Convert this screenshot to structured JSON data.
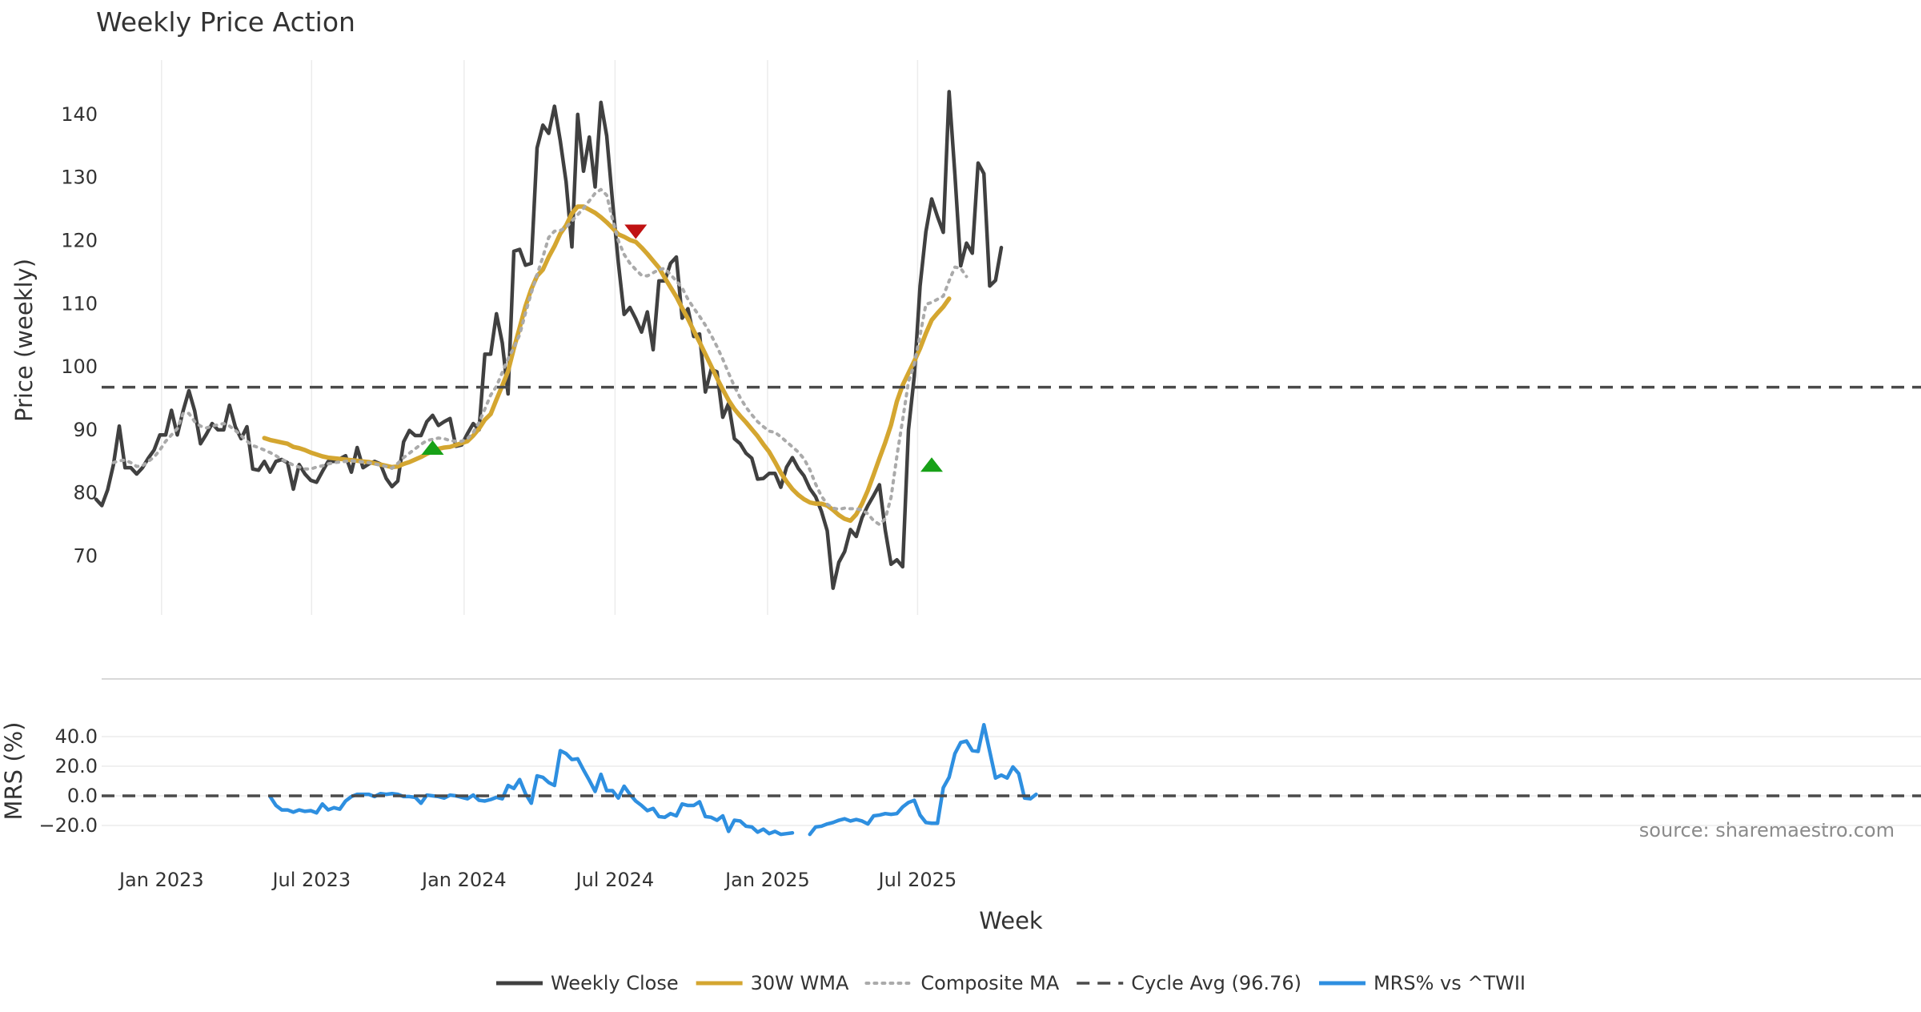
{
  "chart_data": [
    {
      "type": "line",
      "title": "Weekly Price Action",
      "ylabel": "Price (weekly)",
      "ylim": [
        60,
        148
      ],
      "yticks": [
        70,
        80,
        90,
        100,
        110,
        120,
        130,
        140
      ],
      "grid": "vertical",
      "x_start": "2022-10-14",
      "x_step_days": 7,
      "series": [
        {
          "name": "Weekly Close",
          "color": "#404040",
          "style": "solid",
          "values": [
            79,
            78,
            80.5,
            84.5,
            90.6,
            84,
            84,
            83,
            84,
            85.5,
            86.8,
            89.2,
            89.2,
            93.1,
            89.2,
            93,
            96.2,
            93,
            87.8,
            89.3,
            91,
            90,
            90,
            93.9,
            90.5,
            88.6,
            90.5,
            83.8,
            83.6,
            85,
            83.3,
            85,
            85.3,
            84.8,
            80.6,
            84.5,
            83,
            82,
            81.7,
            83.4,
            85,
            85,
            85.4,
            85.9,
            83.3,
            87.2,
            84,
            84.6,
            85,
            84.6,
            82.3,
            81,
            81.9,
            88.1,
            89.9,
            89.1,
            89.1,
            91.3,
            92.3,
            90.7,
            91.3,
            91.8,
            87.4,
            87.6,
            89.4,
            91,
            90,
            102,
            102,
            108.4,
            103.8,
            95.7,
            118.3,
            118.6,
            116.1,
            116.4,
            134.7,
            138.3,
            137,
            141.3,
            135.8,
            129.3,
            119,
            140,
            131,
            136.4,
            128.5,
            141.9,
            136.6,
            126.2,
            116.5,
            108.3,
            109.4,
            107.6,
            105.5,
            108.7,
            102.7,
            113.6,
            113.6,
            116.4,
            117.4,
            107.7,
            109.2,
            104.8,
            105.2,
            96,
            99.6,
            99.2,
            92,
            94.2,
            88.6,
            87.8,
            86.3,
            85.5,
            82.2,
            82.3,
            83.1,
            83.1,
            80.9,
            84.1,
            85.6,
            83.9,
            82.7,
            80.7,
            79.4,
            77.1,
            74,
            64.9,
            69,
            70.7,
            74.2,
            73.1,
            76.1,
            78,
            79.6,
            81.3,
            74.1,
            68.7,
            69.4,
            68.3,
            90,
            98.5,
            112.8,
            121.4,
            126.6,
            123.8,
            121.3,
            143.6,
            130.5,
            116,
            119.6,
            118,
            132.3,
            130.6,
            112.8,
            113.7,
            118.9
          ]
        },
        {
          "name": "30W WMA",
          "color": "#d4a630",
          "style": "solid",
          "start_index": 29,
          "values": [
            88.7,
            88.4,
            88.2,
            88,
            87.8,
            87.3,
            87.1,
            86.8,
            86.4,
            86.1,
            85.8,
            85.6,
            85.5,
            85.4,
            85.3,
            85.2,
            85.1,
            85,
            84.9,
            84.7,
            84.5,
            84.3,
            84.1,
            84.2,
            84.6,
            84.9,
            85.3,
            85.7,
            86.2,
            86.6,
            87,
            87.2,
            87.3,
            87.6,
            87.9,
            88.2,
            89.1,
            90.2,
            91.6,
            92.5,
            94.8,
            97,
            99.3,
            102.9,
            106.2,
            109.6,
            112.3,
            114.4,
            115.4,
            117.4,
            119.1,
            121.1,
            122.4,
            124.3,
            125.4,
            125.4,
            124.9,
            124.4,
            123.7,
            122.9,
            122,
            121,
            120.6,
            120.1,
            119.8,
            118.9,
            117.9,
            116.8,
            115.7,
            114.1,
            112.6,
            111.1,
            109.3,
            107.6,
            105.7,
            103.9,
            102,
            100.1,
            98.2,
            96.4,
            94.7,
            93.3,
            92.2,
            91.2,
            90.1,
            89,
            87.7,
            86.5,
            84.9,
            83.2,
            81.8,
            80.6,
            79.7,
            79,
            78.5,
            78.3,
            78.3,
            78,
            77.3,
            76.5,
            75.9,
            75.6,
            76.6,
            78.3,
            80.4,
            82.9,
            85.5,
            88,
            90.8,
            94.5,
            97.1,
            99,
            100.9,
            102.9,
            105.3,
            107.4,
            108.5,
            109.5,
            110.8
          ]
        },
        {
          "name": "Composite MA",
          "color": "#aaaaaa",
          "style": "dotted",
          "start_index": 3,
          "values": [
            84.8,
            85.1,
            85.2,
            84.8,
            84.2,
            84.3,
            85,
            85.7,
            86.8,
            88.2,
            89.2,
            90.2,
            92.6,
            92.6,
            91.3,
            90.6,
            90.3,
            90.6,
            90.8,
            91,
            90.6,
            89.9,
            89.1,
            88.2,
            87.5,
            87.2,
            86.8,
            86.4,
            85.9,
            85.3,
            84.9,
            84.4,
            84.1,
            83.8,
            83.8,
            84.1,
            84.3,
            84.6,
            84.8,
            84.9,
            85,
            85.1,
            85,
            84.9,
            84.8,
            84.6,
            84.4,
            84.2,
            83.9,
            84.7,
            85.6,
            86.3,
            87,
            87.7,
            88.3,
            88.5,
            88.7,
            88.6,
            88.3,
            88.2,
            88.2,
            88.6,
            89.6,
            91.2,
            93.3,
            95.5,
            96.9,
            99.1,
            101.3,
            103,
            105.1,
            108.5,
            111.7,
            114.6,
            117.4,
            120.5,
            121.5,
            121.6,
            122.1,
            123.1,
            124.1,
            125.1,
            126.3,
            127.5,
            128.1,
            127.2,
            123.4,
            120,
            117.8,
            116.4,
            115.4,
            114.5,
            114.4,
            114.9,
            115.4,
            115.6,
            114.6,
            113.6,
            112.5,
            110.7,
            109.3,
            108,
            106.6,
            105,
            103.2,
            101.2,
            99,
            96.9,
            95.1,
            93.6,
            92.4,
            91.3,
            90.5,
            89.8,
            89.6,
            88.9,
            88.1,
            87.3,
            86.5,
            85.4,
            83.7,
            81.4,
            79.5,
            78.2,
            77.6,
            77.4,
            77.6,
            77.5,
            77.5,
            77.3,
            76.7,
            75.6,
            75,
            75.9,
            79.3,
            85.8,
            91.6,
            97.6,
            100.4,
            105,
            109.9,
            110.2,
            110.7,
            111.2,
            113.6,
            115.8,
            115.6,
            114.3
          ]
        },
        {
          "name": "Cycle Avg (96.76)",
          "color": "#4a4a4a",
          "style": "dashed",
          "constant": 96.76
        }
      ],
      "markers": [
        {
          "type": "buy",
          "index": 58,
          "value": 87.2,
          "color": "#17a117"
        },
        {
          "type": "sell",
          "index": 93,
          "value": 121.4,
          "color": "#c01212"
        },
        {
          "type": "buy",
          "index": 144,
          "value": 84.5,
          "color": "#17a117"
        }
      ]
    },
    {
      "type": "line",
      "ylabel": "MRS (%)",
      "ylim": [
        -28,
        54
      ],
      "yticks": [
        -20.0,
        0.0,
        20.0,
        40.0
      ],
      "ytick_labels": [
        "−20.0",
        "0.0",
        "20.0",
        "40.0"
      ],
      "xlabel": "Week",
      "xticks": [
        "Jan 2023",
        "Jul 2023",
        "Jan 2024",
        "Jul 2024",
        "Jan 2025",
        "Jul 2025"
      ],
      "x_start": "2022-10-14",
      "x_step_days": 7,
      "series": [
        {
          "name": "MRS% vs ^TWII",
          "color": "#2e8fe0",
          "style": "solid",
          "start_index": 30,
          "values": [
            -0.5,
            -6.5,
            -9.5,
            -9.5,
            -11,
            -9.5,
            -10.5,
            -10,
            -11.5,
            -5.5,
            -9.5,
            -8,
            -9,
            -3.5,
            -0.5,
            1,
            1,
            1,
            -0.5,
            1.5,
            1,
            1.5,
            1,
            -0.5,
            -0.5,
            -1,
            -5,
            0.5,
            0,
            -0.5,
            -1.5,
            0.5,
            0,
            -1,
            -2,
            0.5,
            -3,
            -3.5,
            -2.5,
            -1,
            -2,
            7,
            5,
            11,
            1.5,
            -5,
            13.5,
            12.5,
            9,
            7,
            30.5,
            28.5,
            24.5,
            25,
            17.5,
            10.5,
            3,
            14.5,
            3.5,
            3.5,
            -1.5,
            6.5,
            1,
            -3.5,
            -6.5,
            -10,
            -8.5,
            -14,
            -14.5,
            -12,
            -13.5,
            -5.5,
            -6.5,
            -6.5,
            -4,
            -14,
            -14.5,
            -16.5,
            -13.5,
            -24,
            -16.5,
            -17,
            -20.5,
            -21,
            -24.5,
            -22.5,
            -25.5,
            -24,
            -26,
            -25.5,
            -25,
            null,
            null,
            -26,
            -21,
            -20.5,
            -19,
            -18,
            -16.5,
            -15.5,
            -17,
            -16,
            -17,
            -19,
            -13.5,
            -13,
            -12,
            -12.5,
            -12,
            -7.5,
            -4.5,
            -3,
            -13,
            -18,
            -18.5,
            -18.5,
            5.5,
            12.5,
            28.5,
            36,
            37,
            30.5,
            30,
            48,
            30,
            12,
            14,
            12,
            19.5,
            15,
            -1.5,
            -2,
            1
          ]
        },
        {
          "name": "",
          "color": "#4a4a4a",
          "style": "dashed",
          "constant": 0
        }
      ]
    }
  ],
  "source_text": "source: sharemaestro.com",
  "legend": [
    {
      "label": "Weekly Close",
      "color": "#404040",
      "style": "solid"
    },
    {
      "label": "30W WMA",
      "color": "#d4a630",
      "style": "solid"
    },
    {
      "label": "Composite MA",
      "color": "#aaaaaa",
      "style": "dotted"
    },
    {
      "label": "Cycle Avg (96.76)",
      "color": "#4a4a4a",
      "style": "dashed"
    },
    {
      "label": "MRS% vs ^TWII",
      "color": "#2e8fe0",
      "style": "solid"
    }
  ]
}
